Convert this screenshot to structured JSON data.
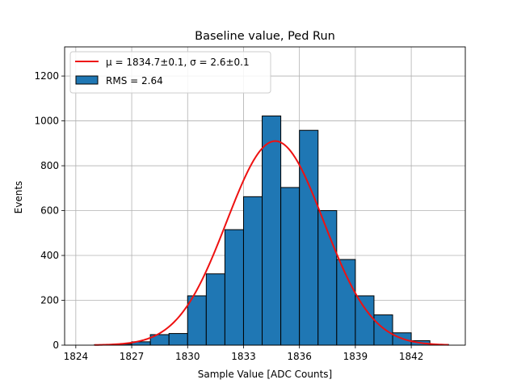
{
  "chart_data": {
    "type": "bar",
    "title": "Baseline value, Ped Run",
    "xlabel": "Sample Value [ADC Counts]",
    "ylabel": "Events",
    "xlim": [
      1823.4,
      1844.9
    ],
    "ylim": [
      0,
      1330
    ],
    "xticks": [
      1824,
      1827,
      1830,
      1833,
      1836,
      1839,
      1842
    ],
    "yticks": [
      0,
      200,
      400,
      600,
      800,
      1000,
      1200
    ],
    "grid": true,
    "legend_position": "top-left",
    "bin_edges": [
      1825,
      1826,
      1827,
      1828,
      1829,
      1830,
      1831,
      1832,
      1833,
      1834,
      1835,
      1836,
      1837,
      1838,
      1839,
      1840,
      1841,
      1842,
      1843,
      1844
    ],
    "counts": [
      2,
      5,
      15,
      47,
      52,
      220,
      318,
      515,
      662,
      1022,
      703,
      958,
      600,
      382,
      220,
      135,
      55,
      20,
      3
    ],
    "bar_color": "#1f77b4",
    "bar_edge_color": "#000000",
    "fit": {
      "type": "gaussian",
      "mu": 1834.7,
      "sigma": 2.6,
      "amplitude": 910,
      "x_range": [
        1825,
        1844
      ],
      "color": "#ee1111"
    },
    "legend": [
      {
        "label": "μ = 1834.7±0.1, σ = 2.6±0.1",
        "kind": "line",
        "color": "#ee1111"
      },
      {
        "label": "RMS = 2.64",
        "kind": "patch",
        "color": "#1f77b4"
      }
    ]
  }
}
